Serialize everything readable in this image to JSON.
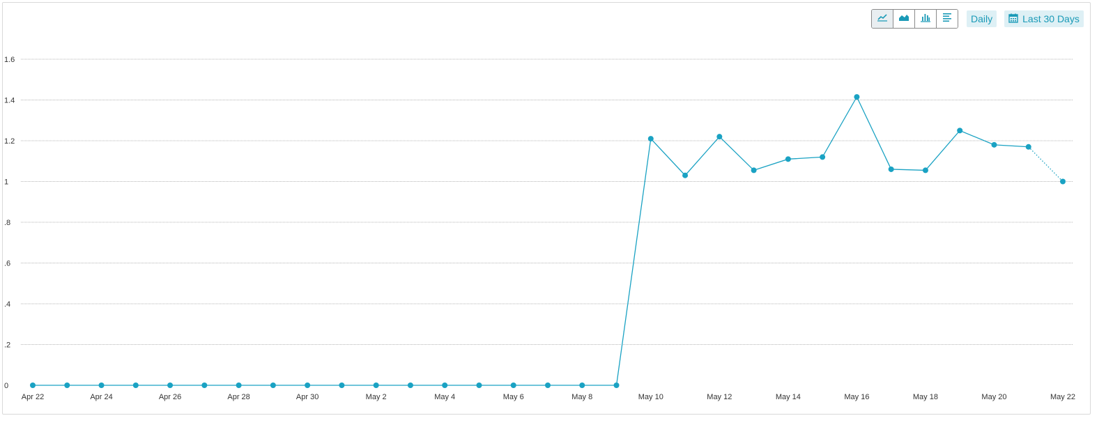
{
  "toolbar": {
    "views": [
      {
        "icon": "line-chart-icon",
        "active": true
      },
      {
        "icon": "area-chart-icon",
        "active": false
      },
      {
        "icon": "bar-chart-icon",
        "active": false
      },
      {
        "icon": "table-list-icon",
        "active": false
      }
    ],
    "interval_label": "Daily",
    "date_range_label": "Last 30 Days",
    "date_range_icon": "calendar-icon"
  },
  "colors": {
    "accent": "#1a9ab7",
    "series": "#1aa2c3",
    "pill_bg": "#def0f5",
    "grid": "#b5b5b5"
  },
  "chart_data": {
    "type": "line",
    "x": [
      "Apr 22",
      "Apr 23",
      "Apr 24",
      "Apr 25",
      "Apr 26",
      "Apr 27",
      "Apr 28",
      "Apr 29",
      "Apr 30",
      "May 1",
      "May 2",
      "May 3",
      "May 4",
      "May 5",
      "May 6",
      "May 7",
      "May 8",
      "May 9",
      "May 10",
      "May 11",
      "May 12",
      "May 13",
      "May 14",
      "May 15",
      "May 16",
      "May 17",
      "May 18",
      "May 19",
      "May 20",
      "May 21",
      "May 22"
    ],
    "x_tick_labels": [
      "Apr 22",
      "Apr 24",
      "Apr 26",
      "Apr 28",
      "Apr 30",
      "May 2",
      "May 4",
      "May 6",
      "May 8",
      "May 10",
      "May 12",
      "May 14",
      "May 16",
      "May 18",
      "May 20",
      "May 22"
    ],
    "series": [
      {
        "values": [
          0,
          0,
          0,
          0,
          0,
          0,
          0,
          0,
          0,
          0,
          0,
          0,
          0,
          0,
          0,
          0,
          0,
          0,
          1.21,
          1.03,
          1.22,
          1.055,
          1.11,
          1.12,
          1.415,
          1.06,
          1.055,
          1.25,
          1.18,
          1.17,
          1.0
        ],
        "partial_last_segment": true
      }
    ],
    "y_tick_labels": [
      ".2",
      ".4",
      ".6",
      ".8",
      "1",
      "1.2",
      "1.4",
      "1.6"
    ],
    "y_ticks": [
      0,
      0.2,
      0.4,
      0.6,
      0.8,
      1,
      1.2,
      1.4,
      1.6
    ],
    "ylim": [
      0,
      1.6
    ],
    "y_zero_label": "0",
    "grid": true,
    "legend": "none",
    "title": "",
    "xlabel": "",
    "ylabel": ""
  }
}
